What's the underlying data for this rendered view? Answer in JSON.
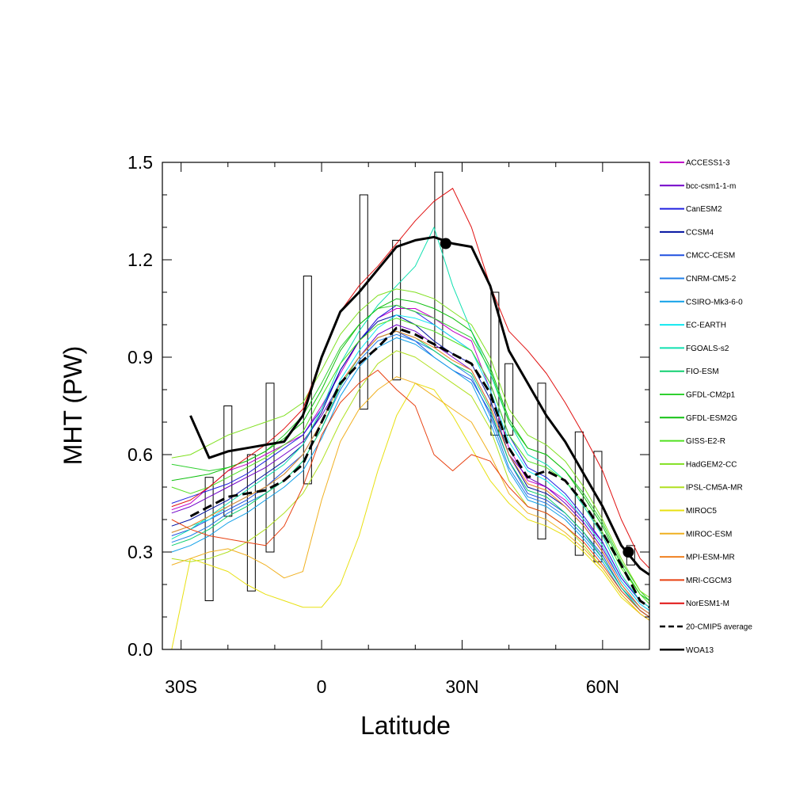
{
  "chart_data": {
    "type": "line",
    "xlabel": "Latitude",
    "ylabel": "MHT (PW)",
    "xlim": [
      -34,
      70
    ],
    "ylim": [
      0,
      1.5
    ],
    "x_ticks": [
      {
        "value": -30,
        "label": "30S"
      },
      {
        "value": 0,
        "label": "0"
      },
      {
        "value": 30,
        "label": "30N"
      },
      {
        "value": 60,
        "label": "60N"
      }
    ],
    "y_ticks": [
      {
        "value": 0,
        "label": "0.0"
      },
      {
        "value": 0.3,
        "label": "0.3"
      },
      {
        "value": 0.6,
        "label": "0.6"
      },
      {
        "value": 0.9,
        "label": "0.9"
      },
      {
        "value": 1.2,
        "label": "1.2"
      },
      {
        "value": 1.5,
        "label": "1.5"
      }
    ],
    "legend_position": "right",
    "x": [
      -32,
      -28,
      -24,
      -20,
      -16,
      -12,
      -8,
      -4,
      0,
      4,
      8,
      12,
      16,
      20,
      24,
      28,
      32,
      36,
      40,
      44,
      48,
      52,
      56,
      60,
      64,
      68,
      70
    ],
    "series": [
      {
        "name": "ACCESS1-3",
        "color": "#c000c8",
        "values": [
          0.43,
          0.45,
          0.5,
          0.55,
          0.57,
          0.6,
          0.63,
          0.66,
          0.75,
          0.85,
          0.95,
          1.02,
          1.05,
          1.05,
          1.02,
          0.98,
          0.95,
          0.8,
          0.62,
          0.52,
          0.5,
          0.46,
          0.4,
          0.33,
          0.22,
          0.15,
          0.13
        ]
      },
      {
        "name": "bcc-csm1-1-m",
        "color": "#7000c8",
        "values": [
          0.42,
          0.44,
          0.47,
          0.5,
          0.53,
          0.56,
          0.6,
          0.64,
          0.72,
          0.82,
          0.9,
          0.97,
          1.0,
          0.98,
          0.94,
          0.9,
          0.86,
          0.75,
          0.6,
          0.53,
          0.5,
          0.45,
          0.39,
          0.31,
          0.21,
          0.14,
          0.12
        ]
      },
      {
        "name": "CanESM2",
        "color": "#2020e0",
        "values": [
          0.45,
          0.47,
          0.49,
          0.51,
          0.54,
          0.58,
          0.62,
          0.66,
          0.74,
          0.86,
          0.95,
          1.02,
          1.06,
          1.04,
          1.0,
          0.96,
          0.92,
          0.82,
          0.66,
          0.56,
          0.53,
          0.48,
          0.41,
          0.33,
          0.22,
          0.15,
          0.13
        ]
      },
      {
        "name": "CCSM4",
        "color": "#0010a0",
        "values": [
          0.38,
          0.4,
          0.43,
          0.46,
          0.5,
          0.54,
          0.58,
          0.63,
          0.73,
          0.86,
          0.95,
          1.01,
          1.03,
          1.0,
          0.95,
          0.91,
          0.88,
          0.77,
          0.6,
          0.5,
          0.48,
          0.44,
          0.38,
          0.3,
          0.2,
          0.13,
          0.11
        ]
      },
      {
        "name": "CMCC-CESM",
        "color": "#2050e0",
        "values": [
          0.35,
          0.37,
          0.4,
          0.43,
          0.46,
          0.5,
          0.55,
          0.6,
          0.7,
          0.82,
          0.9,
          0.96,
          0.98,
          0.95,
          0.9,
          0.86,
          0.83,
          0.73,
          0.58,
          0.48,
          0.46,
          0.42,
          0.36,
          0.29,
          0.19,
          0.12,
          0.1
        ]
      },
      {
        "name": "CNRM-CM5-2",
        "color": "#2080e8",
        "values": [
          0.33,
          0.35,
          0.38,
          0.42,
          0.45,
          0.48,
          0.52,
          0.58,
          0.68,
          0.8,
          0.89,
          0.95,
          0.97,
          0.95,
          0.92,
          0.88,
          0.84,
          0.72,
          0.56,
          0.47,
          0.45,
          0.41,
          0.35,
          0.28,
          0.19,
          0.13,
          0.11
        ]
      },
      {
        "name": "CSIRO-Mk3-6-0",
        "color": "#10a0e8",
        "values": [
          0.3,
          0.32,
          0.35,
          0.39,
          0.42,
          0.46,
          0.5,
          0.55,
          0.65,
          0.78,
          0.87,
          0.93,
          0.96,
          0.94,
          0.9,
          0.86,
          0.82,
          0.7,
          0.55,
          0.46,
          0.44,
          0.4,
          0.34,
          0.27,
          0.18,
          0.12,
          0.1
        ]
      },
      {
        "name": "EC-EARTH",
        "color": "#10e8f0",
        "values": [
          0.36,
          0.38,
          0.4,
          0.44,
          0.47,
          0.5,
          0.54,
          0.6,
          0.7,
          0.83,
          0.92,
          0.99,
          1.03,
          1.02,
          1.0,
          0.96,
          0.92,
          0.8,
          0.64,
          0.55,
          0.52,
          0.47,
          0.4,
          0.32,
          0.21,
          0.14,
          0.12
        ]
      },
      {
        "name": "FGOALS-s2",
        "color": "#10e0b0",
        "values": [
          0.34,
          0.37,
          0.41,
          0.45,
          0.49,
          0.53,
          0.57,
          0.63,
          0.74,
          0.88,
          0.98,
          1.06,
          1.12,
          1.18,
          1.3,
          1.12,
          0.98,
          0.85,
          0.7,
          0.6,
          0.57,
          0.52,
          0.44,
          0.35,
          0.23,
          0.15,
          0.13
        ]
      },
      {
        "name": "FIO-ESM",
        "color": "#10d070",
        "values": [
          0.32,
          0.34,
          0.37,
          0.41,
          0.44,
          0.48,
          0.52,
          0.58,
          0.68,
          0.81,
          0.9,
          0.96,
          0.98,
          0.96,
          0.92,
          0.88,
          0.85,
          0.74,
          0.58,
          0.49,
          0.47,
          0.42,
          0.36,
          0.28,
          0.19,
          0.12,
          0.1
        ]
      },
      {
        "name": "GFDL-CM2p1",
        "color": "#30d030",
        "values": [
          0.57,
          0.56,
          0.55,
          0.56,
          0.58,
          0.61,
          0.66,
          0.72,
          0.82,
          0.93,
          1.0,
          1.05,
          1.06,
          1.04,
          1.02,
          0.99,
          0.96,
          0.86,
          0.7,
          0.62,
          0.6,
          0.55,
          0.48,
          0.39,
          0.27,
          0.18,
          0.15
        ]
      },
      {
        "name": "GFDL-ESM2G",
        "color": "#10c010",
        "values": [
          0.52,
          0.53,
          0.54,
          0.56,
          0.58,
          0.61,
          0.65,
          0.7,
          0.8,
          0.92,
          1.0,
          1.05,
          1.08,
          1.07,
          1.05,
          1.02,
          0.98,
          0.87,
          0.71,
          0.62,
          0.6,
          0.55,
          0.47,
          0.38,
          0.26,
          0.17,
          0.15
        ]
      },
      {
        "name": "GISS-E2-R",
        "color": "#50e020",
        "values": [
          0.5,
          0.48,
          0.5,
          0.53,
          0.56,
          0.59,
          0.63,
          0.67,
          0.78,
          0.88,
          0.95,
          1.0,
          1.02,
          1.0,
          0.98,
          0.95,
          0.92,
          0.82,
          0.66,
          0.58,
          0.56,
          0.52,
          0.45,
          0.36,
          0.25,
          0.17,
          0.14
        ]
      },
      {
        "name": "HadGEM2-CC",
        "color": "#80e020",
        "values": [
          0.59,
          0.6,
          0.63,
          0.66,
          0.68,
          0.7,
          0.72,
          0.76,
          0.86,
          0.97,
          1.04,
          1.09,
          1.11,
          1.1,
          1.08,
          1.04,
          1.0,
          0.9,
          0.74,
          0.66,
          0.63,
          0.58,
          0.5,
          0.4,
          0.28,
          0.18,
          0.16
        ]
      },
      {
        "name": "IPSL-CM5A-MR",
        "color": "#b0e020",
        "values": [
          0.28,
          0.27,
          0.28,
          0.3,
          0.33,
          0.37,
          0.42,
          0.48,
          0.58,
          0.7,
          0.8,
          0.88,
          0.92,
          0.9,
          0.86,
          0.82,
          0.78,
          0.68,
          0.52,
          0.44,
          0.42,
          0.38,
          0.32,
          0.25,
          0.17,
          0.11,
          0.09
        ]
      },
      {
        "name": "MIROC5",
        "color": "#e8e010",
        "values": [
          0.0,
          0.28,
          0.26,
          0.24,
          0.2,
          0.17,
          0.15,
          0.13,
          0.13,
          0.2,
          0.35,
          0.55,
          0.72,
          0.82,
          0.8,
          0.72,
          0.62,
          0.52,
          0.45,
          0.4,
          0.38,
          0.35,
          0.3,
          0.24,
          0.16,
          0.11,
          0.09
        ]
      },
      {
        "name": "MIROC-ESM",
        "color": "#f0b020",
        "values": [
          0.26,
          0.28,
          0.3,
          0.31,
          0.29,
          0.26,
          0.22,
          0.24,
          0.46,
          0.64,
          0.74,
          0.8,
          0.84,
          0.82,
          0.78,
          0.74,
          0.7,
          0.6,
          0.48,
          0.42,
          0.4,
          0.36,
          0.31,
          0.25,
          0.17,
          0.11,
          0.09
        ]
      },
      {
        "name": "MPI-ESM-MR",
        "color": "#f08020",
        "values": [
          0.36,
          0.38,
          0.41,
          0.44,
          0.47,
          0.5,
          0.54,
          0.6,
          0.7,
          0.82,
          0.9,
          0.96,
          0.98,
          0.96,
          0.93,
          0.89,
          0.86,
          0.75,
          0.6,
          0.51,
          0.49,
          0.44,
          0.38,
          0.3,
          0.2,
          0.13,
          0.11
        ]
      },
      {
        "name": "MRI-CGCM3",
        "color": "#e84010",
        "values": [
          0.4,
          0.37,
          0.35,
          0.34,
          0.33,
          0.32,
          0.38,
          0.5,
          0.66,
          0.76,
          0.82,
          0.86,
          0.8,
          0.75,
          0.6,
          0.55,
          0.6,
          0.58,
          0.5,
          0.44,
          0.42,
          0.38,
          0.33,
          0.26,
          0.18,
          0.12,
          0.1
        ]
      },
      {
        "name": "NorESM1-M",
        "color": "#e01010",
        "values": [
          0.44,
          0.46,
          0.5,
          0.55,
          0.59,
          0.63,
          0.68,
          0.74,
          0.9,
          1.04,
          1.12,
          1.18,
          1.25,
          1.32,
          1.38,
          1.42,
          1.3,
          1.12,
          0.98,
          0.92,
          0.85,
          0.76,
          0.66,
          0.55,
          0.4,
          0.28,
          0.25
        ]
      },
      {
        "name": "20-CMIP5 average",
        "color": "#000000",
        "values": [
          null,
          0.41,
          0.44,
          0.47,
          0.48,
          0.49,
          0.52,
          0.57,
          0.7,
          0.82,
          0.88,
          0.93,
          0.99,
          0.97,
          0.94,
          0.91,
          0.88,
          0.79,
          0.62,
          0.53,
          0.55,
          0.52,
          0.45,
          0.36,
          0.26,
          0.15,
          0.13
        ]
      },
      {
        "name": "WOA13",
        "color": "#000000",
        "values": [
          null,
          0.72,
          0.59,
          0.61,
          0.62,
          0.63,
          0.64,
          0.72,
          0.9,
          1.04,
          1.1,
          1.17,
          1.24,
          1.26,
          1.27,
          1.25,
          1.24,
          1.12,
          0.92,
          0.82,
          0.72,
          0.64,
          0.54,
          0.44,
          0.32,
          0.25,
          0.23
        ]
      }
    ],
    "boxes": [
      {
        "x": -24,
        "low": 0.15,
        "high": 0.53
      },
      {
        "x": -20,
        "low": 0.41,
        "high": 0.75
      },
      {
        "x": -15,
        "low": 0.18,
        "high": 0.6
      },
      {
        "x": -11,
        "low": 0.3,
        "high": 0.82
      },
      {
        "x": -3,
        "low": 0.51,
        "high": 1.15
      },
      {
        "x": 9,
        "low": 0.74,
        "high": 1.4
      },
      {
        "x": 16,
        "low": 0.83,
        "high": 1.26
      },
      {
        "x": 25,
        "low": 0.93,
        "high": 1.47
      },
      {
        "x": 37,
        "low": 0.66,
        "high": 1.1
      },
      {
        "x": 40,
        "low": 0.66,
        "high": 0.88
      },
      {
        "x": 47,
        "low": 0.34,
        "high": 0.82
      },
      {
        "x": 55,
        "low": 0.29,
        "high": 0.67
      },
      {
        "x": 59,
        "low": 0.27,
        "high": 0.61
      },
      {
        "x": 66,
        "low": 0.26,
        "high": 0.32
      }
    ],
    "markers": [
      {
        "x": 26.5,
        "y": 1.25
      },
      {
        "x": 65.5,
        "y": 0.3
      }
    ]
  }
}
